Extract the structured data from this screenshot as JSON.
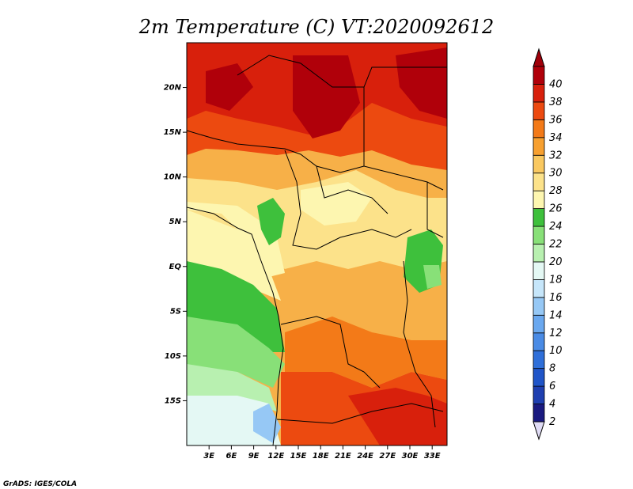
{
  "title": "2m Temperature (C) VT:2020092612",
  "credit": "GrADS: IGES/COLA",
  "map": {
    "lat_ticks": [
      {
        "value": 20,
        "label": "20N"
      },
      {
        "value": 15,
        "label": "15N"
      },
      {
        "value": 10,
        "label": "10N"
      },
      {
        "value": 5,
        "label": "5N"
      },
      {
        "value": 0,
        "label": "EQ"
      },
      {
        "value": -5,
        "label": "5S"
      },
      {
        "value": -10,
        "label": "10S"
      },
      {
        "value": -15,
        "label": "15S"
      }
    ],
    "lon_ticks": [
      {
        "value": 3,
        "label": "3E"
      },
      {
        "value": 6,
        "label": "6E"
      },
      {
        "value": 9,
        "label": "9E"
      },
      {
        "value": 12,
        "label": "12E"
      },
      {
        "value": 15,
        "label": "15E"
      },
      {
        "value": 18,
        "label": "18E"
      },
      {
        "value": 21,
        "label": "21E"
      },
      {
        "value": 24,
        "label": "24E"
      },
      {
        "value": 27,
        "label": "27E"
      },
      {
        "value": 30,
        "label": "30E"
      },
      {
        "value": 33,
        "label": "33E"
      }
    ],
    "lon_range": [
      0,
      35
    ],
    "lat_range": [
      -20,
      25
    ]
  },
  "colorbar": {
    "labels": [
      "2",
      "4",
      "6",
      "8",
      "10",
      "12",
      "14",
      "16",
      "18",
      "20",
      "22",
      "24",
      "26",
      "28",
      "30",
      "32",
      "34",
      "36",
      "38",
      "40"
    ],
    "colors": [
      "#1a1a80",
      "#1f3fb0",
      "#2055c8",
      "#2f6fd9",
      "#4a8be5",
      "#6aa8ef",
      "#96c8f5",
      "#c6e6fa",
      "#e4f8f4",
      "#b8f0b0",
      "#88e078",
      "#3ec03c",
      "#fdf6b0",
      "#fce28a",
      "#f9c860",
      "#f7a030",
      "#f37a18",
      "#ec4a10",
      "#d8200c",
      "#b0000a"
    ],
    "under_color": "#e0dcf5",
    "over_color": "#a0000a"
  }
}
